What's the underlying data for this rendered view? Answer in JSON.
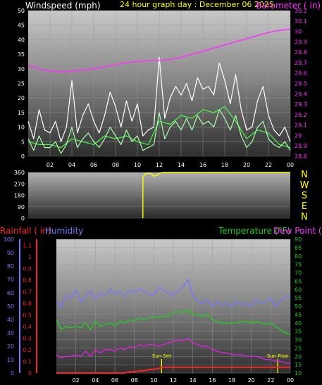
{
  "header": {
    "wind_label": "Windspeed (mph)",
    "title": "24 hour graph day : December 06 2025",
    "baro_label": "Barometer ( in)",
    "rain_label": "Rainfall ( in)",
    "humidity_label": "Humidity",
    "temp_label": "Temperature (°F)",
    "dew_label": "Dew Point (°F)"
  },
  "colors": {
    "wind_gust": "#ffffff",
    "wind_avg": "#44ff44",
    "wind_speed": "#aaffaa",
    "barometer": "#ff33ff",
    "direction": "#ffff00",
    "rain": "#ff2222",
    "humidity": "#7777ff",
    "temperature": "#22cc22",
    "dewpoint": "#dd22dd",
    "sun": "#ffff00"
  },
  "chart_data": [
    {
      "type": "line",
      "name": "wind-barometer",
      "x_ticks": [
        "02",
        "04",
        "06",
        "08",
        "10",
        "12",
        "14",
        "16",
        "18",
        "20",
        "22",
        "00"
      ],
      "y_left_ticks": [
        "0",
        "5",
        "10",
        "15",
        "20",
        "25",
        "30",
        "35",
        "40",
        "45",
        "50"
      ],
      "y_right_ticks": [
        "28.8",
        "28.9",
        "29",
        "29.1",
        "29.2",
        "29.3",
        "29.4",
        "29.5",
        "29.6",
        "29.7",
        "29.8",
        "29.9",
        "30",
        "30.1",
        "30.2"
      ],
      "ylim_left": [
        0,
        50
      ],
      "ylim_right": [
        28.8,
        30.2
      ],
      "series": [
        {
          "key": "gust",
          "x": [
            0,
            0.5,
            1,
            1.5,
            2,
            2.5,
            3,
            3.5,
            4,
            4.5,
            5,
            5.5,
            6,
            6.5,
            7,
            7.5,
            8,
            8.5,
            9,
            9.5,
            10,
            10.5,
            11,
            11.5,
            12,
            12.5,
            13,
            13.5,
            14,
            14.5,
            15,
            15.5,
            16,
            16.5,
            17,
            17.5,
            18,
            18.5,
            19,
            19.5,
            20,
            20.5,
            21,
            21.5,
            22,
            22.5,
            23,
            23.5,
            24
          ],
          "values": [
            12,
            6,
            16,
            9,
            8,
            12,
            5,
            10,
            26,
            8,
            14,
            18,
            12,
            8,
            14,
            22,
            17,
            10,
            19,
            12,
            18,
            7,
            9,
            10,
            34,
            13,
            20,
            24,
            21,
            25,
            19,
            27,
            23,
            24,
            21,
            32,
            26,
            18,
            28,
            16,
            9,
            10,
            19,
            24,
            14,
            9,
            7,
            10,
            5
          ]
        },
        {
          "key": "avg",
          "x": [
            0,
            1,
            2,
            3,
            4,
            5,
            6,
            7,
            8,
            9,
            10,
            11,
            12,
            13,
            14,
            15,
            16,
            17,
            18,
            19,
            20,
            21,
            22,
            23,
            24
          ],
          "values": [
            5,
            4,
            4,
            3,
            6,
            5,
            4,
            7,
            6,
            7,
            5,
            4,
            12,
            11,
            14,
            13,
            16,
            15,
            17,
            12,
            6,
            9,
            8,
            4,
            3
          ]
        },
        {
          "key": "speed",
          "x": [
            0,
            0.5,
            1,
            1.5,
            2,
            2.5,
            3,
            3.5,
            4,
            4.5,
            5,
            5.5,
            6,
            6.5,
            7,
            7.5,
            8,
            8.5,
            9,
            9.5,
            10,
            10.5,
            11,
            11.5,
            12,
            12.5,
            13,
            13.5,
            14,
            14.5,
            15,
            15.5,
            16,
            16.5,
            17,
            17.5,
            18,
            18.5,
            19,
            19.5,
            20,
            20.5,
            21,
            21.5,
            22,
            22.5,
            23,
            23.5,
            24
          ],
          "values": [
            6,
            2,
            7,
            3,
            3,
            5,
            1,
            4,
            10,
            3,
            6,
            8,
            5,
            3,
            6,
            10,
            7,
            4,
            9,
            5,
            7,
            2,
            3,
            4,
            15,
            6,
            10,
            12,
            9,
            13,
            9,
            14,
            11,
            12,
            10,
            16,
            13,
            9,
            14,
            7,
            3,
            5,
            10,
            12,
            6,
            4,
            3,
            5,
            2
          ]
        },
        {
          "key": "barometer",
          "x": [
            0,
            1,
            2,
            3,
            4,
            5,
            6,
            7,
            8,
            9,
            10,
            11,
            12,
            13,
            14,
            15,
            16,
            17,
            18,
            19,
            20,
            21,
            22,
            23,
            24
          ],
          "values": [
            29.67,
            29.64,
            29.62,
            29.61,
            29.62,
            29.63,
            29.64,
            29.66,
            29.68,
            29.7,
            29.71,
            29.72,
            29.72,
            29.73,
            29.75,
            29.78,
            29.81,
            29.84,
            29.87,
            29.9,
            29.93,
            29.96,
            29.99,
            30.01,
            30.02
          ]
        }
      ]
    },
    {
      "type": "line",
      "name": "wind-direction",
      "y_ticks": [
        "0",
        "90",
        "180",
        "270",
        "360"
      ],
      "compass": [
        "N",
        "W",
        "S",
        "E",
        "N"
      ],
      "ylim": [
        0,
        360
      ],
      "series": [
        {
          "key": "direction",
          "x": [
            10.5,
            10.5,
            10.7,
            11.0,
            11.3,
            11.5,
            11.8,
            12.0,
            12.3,
            12.5,
            24
          ],
          "values": [
            0,
            320,
            350,
            355,
            350,
            330,
            340,
            350,
            360,
            360,
            360
          ]
        }
      ]
    },
    {
      "type": "line",
      "name": "rain-humidity-temp",
      "x_ticks": [
        "02",
        "04",
        "06",
        "08",
        "10",
        "12",
        "14",
        "16",
        "18",
        "20",
        "22",
        "00"
      ],
      "humidity_ticks": [
        "0",
        "10",
        "20",
        "30",
        "40",
        "50",
        "60",
        "70",
        "80",
        "90",
        "100"
      ],
      "rain_ticks": [
        "0",
        "0.1",
        "0.2",
        "0.3",
        "0.4",
        "0.5",
        "0.6",
        "0.7",
        "0.8",
        "0.9",
        "1",
        "1.1"
      ],
      "temp_ticks": [
        "10",
        "15",
        "20",
        "25",
        "30",
        "35",
        "40",
        "45",
        "50",
        "55",
        "60",
        "65",
        "70",
        "75",
        "80",
        "85",
        "90"
      ],
      "ylim_humidity": [
        0,
        100
      ],
      "ylim_rain": [
        0,
        1.15
      ],
      "ylim_temp": [
        10,
        90
      ],
      "annotations": [
        {
          "label": "Sun Set",
          "x": 10.8
        },
        {
          "label": "Sun Rise",
          "x": 22.7
        }
      ],
      "series": [
        {
          "key": "humidity",
          "x": [
            0,
            0.5,
            1,
            1.5,
            2,
            2.5,
            3,
            3.5,
            4,
            4.5,
            5,
            5.5,
            6,
            6.5,
            7,
            7.5,
            8,
            8.5,
            9,
            9.5,
            10,
            10.5,
            11,
            11.5,
            12,
            12.5,
            13,
            13.5,
            14,
            14.5,
            15,
            15.5,
            16,
            16.5,
            17,
            17.5,
            18,
            18.5,
            19,
            19.5,
            20,
            20.5,
            21,
            21.5,
            22,
            22.5,
            23,
            23.5,
            24
          ],
          "values": [
            54,
            49,
            58,
            56,
            62,
            53,
            57,
            61,
            55,
            60,
            58,
            63,
            59,
            61,
            57,
            62,
            60,
            63,
            61,
            59,
            58,
            64,
            62,
            60,
            58,
            62,
            64,
            70,
            58,
            54,
            52,
            55,
            50,
            53,
            51,
            52,
            50,
            54,
            51,
            52,
            50,
            55,
            52,
            53,
            56,
            50,
            54,
            57,
            58
          ]
        },
        {
          "key": "temperature",
          "x": [
            0,
            0.5,
            1,
            1.5,
            2,
            2.5,
            3,
            3.5,
            4,
            4.5,
            5,
            5.5,
            6,
            6.5,
            7,
            7.5,
            8,
            8.5,
            9,
            9.5,
            10,
            10.5,
            11,
            11.5,
            12,
            12.5,
            13,
            13.5,
            14,
            14.5,
            15,
            15.5,
            16,
            16.5,
            17,
            17.5,
            18,
            18.5,
            19,
            19.5,
            20,
            20.5,
            21,
            21.5,
            22,
            22.5,
            23,
            23.5,
            24
          ],
          "values": [
            42,
            36,
            38,
            37,
            38,
            37,
            40,
            36,
            41,
            38,
            39,
            40,
            38,
            41,
            40,
            42,
            41,
            43,
            42,
            43,
            44,
            43,
            44,
            44,
            46,
            47,
            46,
            48,
            45,
            45,
            44,
            45,
            42,
            41,
            40,
            40,
            40,
            40,
            41,
            41,
            40,
            41,
            40,
            39,
            40,
            38,
            36,
            34,
            33
          ]
        },
        {
          "key": "dewpoint",
          "x": [
            0,
            0.5,
            1,
            1.5,
            2,
            2.5,
            3,
            3.5,
            4,
            4.5,
            5,
            5.5,
            6,
            6.5,
            7,
            7.5,
            8,
            8.5,
            9,
            9.5,
            10,
            10.5,
            11,
            11.5,
            12,
            12.5,
            13,
            13.5,
            14,
            14.5,
            15,
            15.5,
            16,
            16.5,
            17,
            17.5,
            18,
            18.5,
            19,
            19.5,
            20,
            20.5,
            21,
            21.5,
            22,
            22.5,
            23,
            23.5,
            24
          ],
          "values": [
            21,
            19,
            20,
            20,
            21,
            20,
            23,
            20,
            24,
            22,
            24,
            24,
            23,
            25,
            24,
            26,
            25,
            27,
            26,
            27,
            27,
            26,
            27,
            28,
            29,
            30,
            29,
            31,
            28,
            27,
            26,
            26,
            24,
            23,
            22,
            22,
            21,
            21,
            21,
            20,
            20,
            20,
            19,
            18,
            18,
            17,
            17,
            16,
            16
          ]
        },
        {
          "key": "rain",
          "x": [
            0,
            7,
            7.5,
            8,
            8.5,
            9,
            9.5,
            10,
            10.5,
            11,
            11.5,
            24
          ],
          "values": [
            0,
            0,
            0.01,
            0.01,
            0.02,
            0.02,
            0.03,
            0.03,
            0.04,
            0.05,
            0.05,
            0.05
          ]
        }
      ]
    }
  ]
}
